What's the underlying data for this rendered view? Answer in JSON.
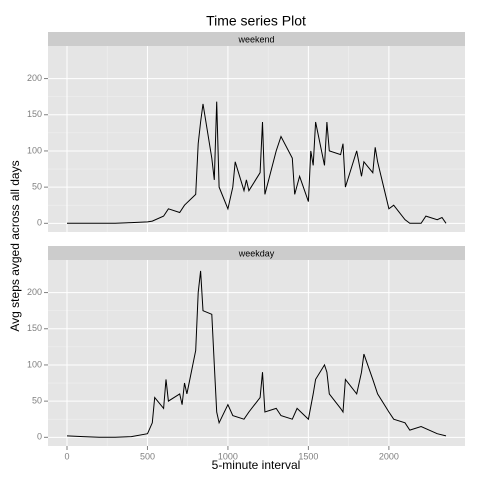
{
  "chart_data": {
    "type": "line",
    "title": "Time series Plot",
    "xlabel": "5-minute interval",
    "ylabel": "Avg steps avged across all days",
    "xlim": [
      -118,
      2473
    ],
    "xticks": [
      0,
      500,
      1000,
      1500,
      2000
    ],
    "ylim": [
      -12,
      245
    ],
    "yticks": [
      0,
      50,
      100,
      150,
      200
    ],
    "grid": true,
    "color": "#000000",
    "panels": [
      {
        "name": "weekend",
        "x": [
          0,
          100,
          200,
          300,
          400,
          500,
          530,
          600,
          630,
          700,
          730,
          800,
          815,
          830,
          845,
          900,
          915,
          930,
          945,
          1000,
          1030,
          1045,
          1100,
          1115,
          1130,
          1200,
          1215,
          1230,
          1300,
          1330,
          1400,
          1415,
          1445,
          1500,
          1515,
          1530,
          1545,
          1600,
          1615,
          1630,
          1700,
          1715,
          1730,
          1800,
          1830,
          1845,
          1900,
          1915,
          1930,
          2000,
          2030,
          2100,
          2130,
          2200,
          2230,
          2300,
          2330,
          2355
        ],
        "values": [
          0,
          0,
          0,
          0,
          1,
          2,
          3,
          10,
          20,
          15,
          25,
          40,
          110,
          140,
          165,
          90,
          60,
          168,
          50,
          20,
          50,
          85,
          45,
          60,
          45,
          70,
          140,
          40,
          100,
          120,
          90,
          40,
          65,
          30,
          100,
          80,
          140,
          80,
          140,
          100,
          95,
          110,
          50,
          100,
          65,
          85,
          70,
          105,
          85,
          20,
          25,
          5,
          0,
          0,
          10,
          5,
          8,
          0
        ]
      },
      {
        "name": "weekday",
        "x": [
          0,
          100,
          200,
          300,
          400,
          500,
          530,
          545,
          600,
          615,
          630,
          700,
          715,
          730,
          745,
          800,
          815,
          830,
          845,
          900,
          915,
          930,
          945,
          1000,
          1030,
          1100,
          1130,
          1200,
          1215,
          1230,
          1300,
          1330,
          1400,
          1430,
          1500,
          1530,
          1545,
          1600,
          1615,
          1630,
          1700,
          1715,
          1730,
          1800,
          1830,
          1845,
          1900,
          1930,
          2000,
          2030,
          2100,
          2130,
          2200,
          2300,
          2355
        ],
        "values": [
          2,
          1,
          0,
          0,
          1,
          5,
          20,
          55,
          40,
          80,
          50,
          60,
          45,
          75,
          60,
          120,
          200,
          230,
          175,
          170,
          100,
          35,
          20,
          45,
          30,
          25,
          35,
          55,
          90,
          35,
          40,
          30,
          25,
          40,
          25,
          60,
          80,
          100,
          90,
          60,
          40,
          35,
          80,
          60,
          90,
          115,
          80,
          60,
          35,
          25,
          20,
          10,
          15,
          5,
          2
        ]
      }
    ]
  }
}
